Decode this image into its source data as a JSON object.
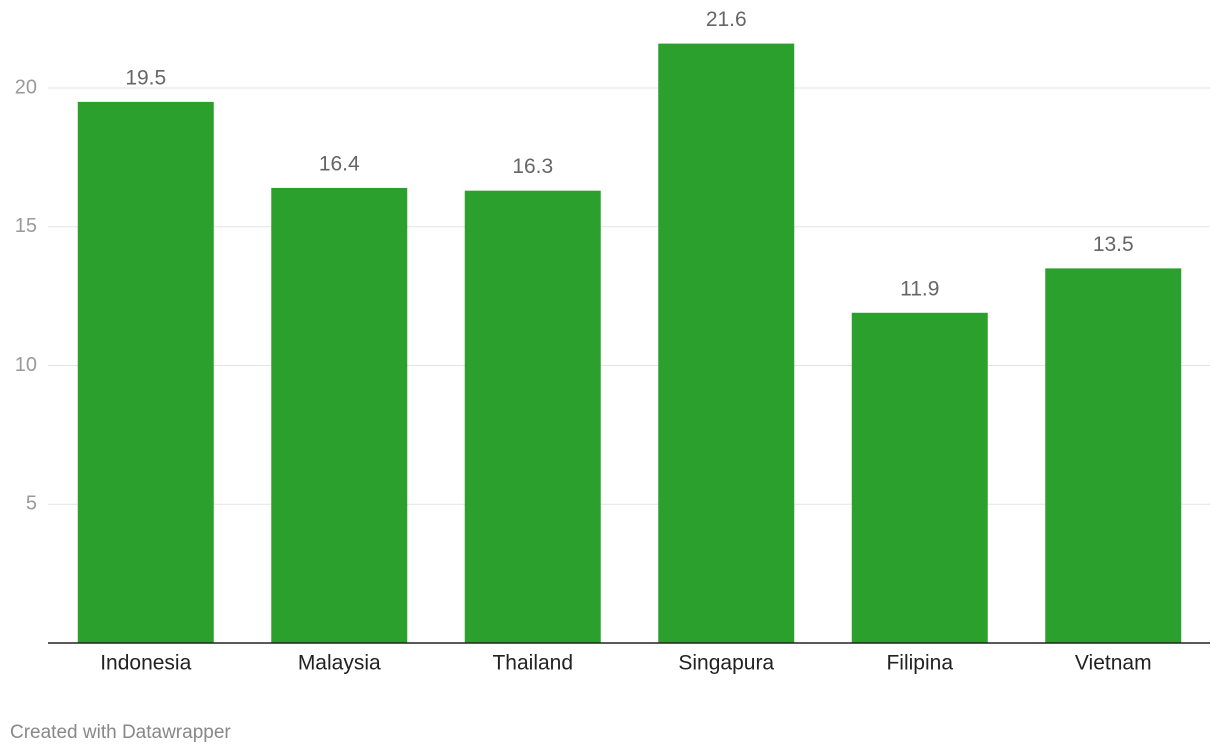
{
  "chart_data": {
    "type": "bar",
    "categories": [
      "Indonesia",
      "Malaysia",
      "Thailand",
      "Singapura",
      "Filipina",
      "Vietnam"
    ],
    "values": [
      19.5,
      16.4,
      16.3,
      21.6,
      11.9,
      13.5
    ],
    "color": "#2ca02c",
    "ylim": [
      0,
      22
    ],
    "yticks": [
      5,
      10,
      15,
      20
    ],
    "grid": true,
    "footer": "Created with Datawrapper"
  }
}
